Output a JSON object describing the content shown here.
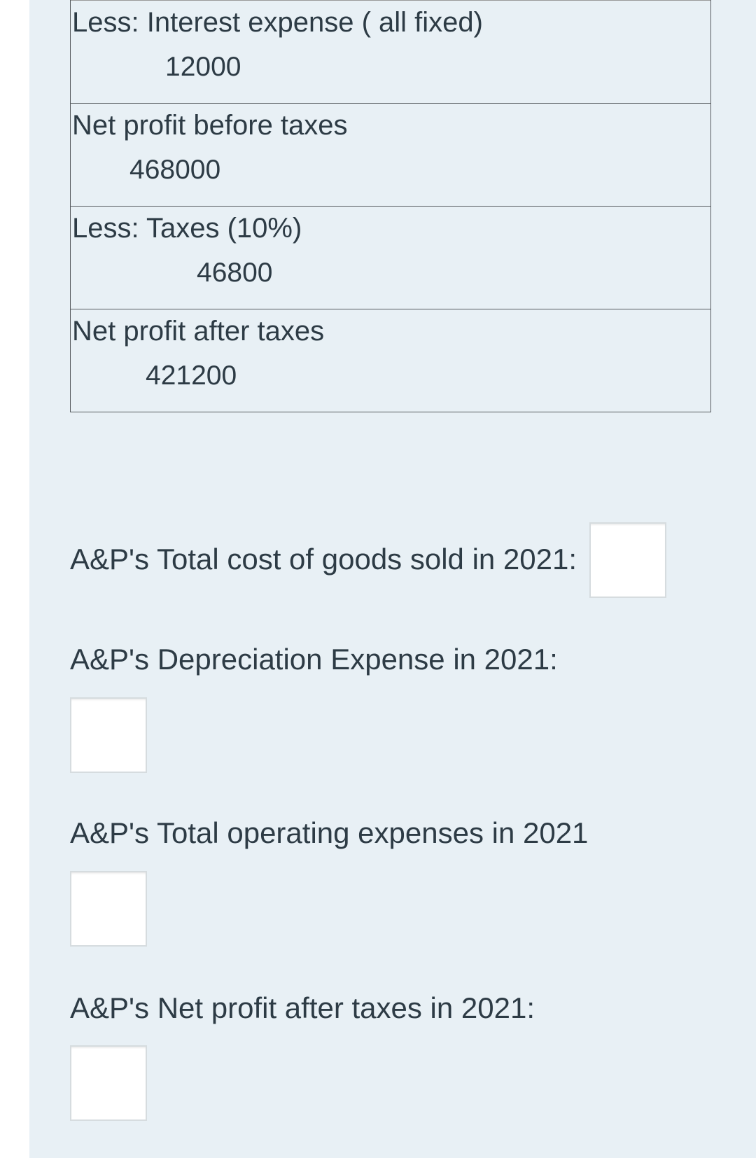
{
  "statement_rows": [
    {
      "label": "Less: Interest expense ( all fixed)",
      "value": "12000"
    },
    {
      "label": "Net profit before taxes",
      "value": "468000"
    },
    {
      "label": "Less: Taxes (10%)",
      "value": "46800"
    },
    {
      "label": "Net profit after taxes",
      "value": "421200"
    }
  ],
  "questions": [
    {
      "label": "A&P's Total cost of goods sold in 2021:",
      "value": ""
    },
    {
      "label": "A&P's Depreciation Expense in 2021:",
      "value": ""
    },
    {
      "label": "A&P's Total operating expenses in 2021",
      "value": ""
    },
    {
      "label": "A&P's Net profit after taxes in 2021:",
      "value": ""
    }
  ],
  "colors": {
    "panel_background": "#e8f0f5",
    "text": "#2d3b45",
    "table_border": "#555a5e",
    "input_border": "#d6dcdf"
  }
}
